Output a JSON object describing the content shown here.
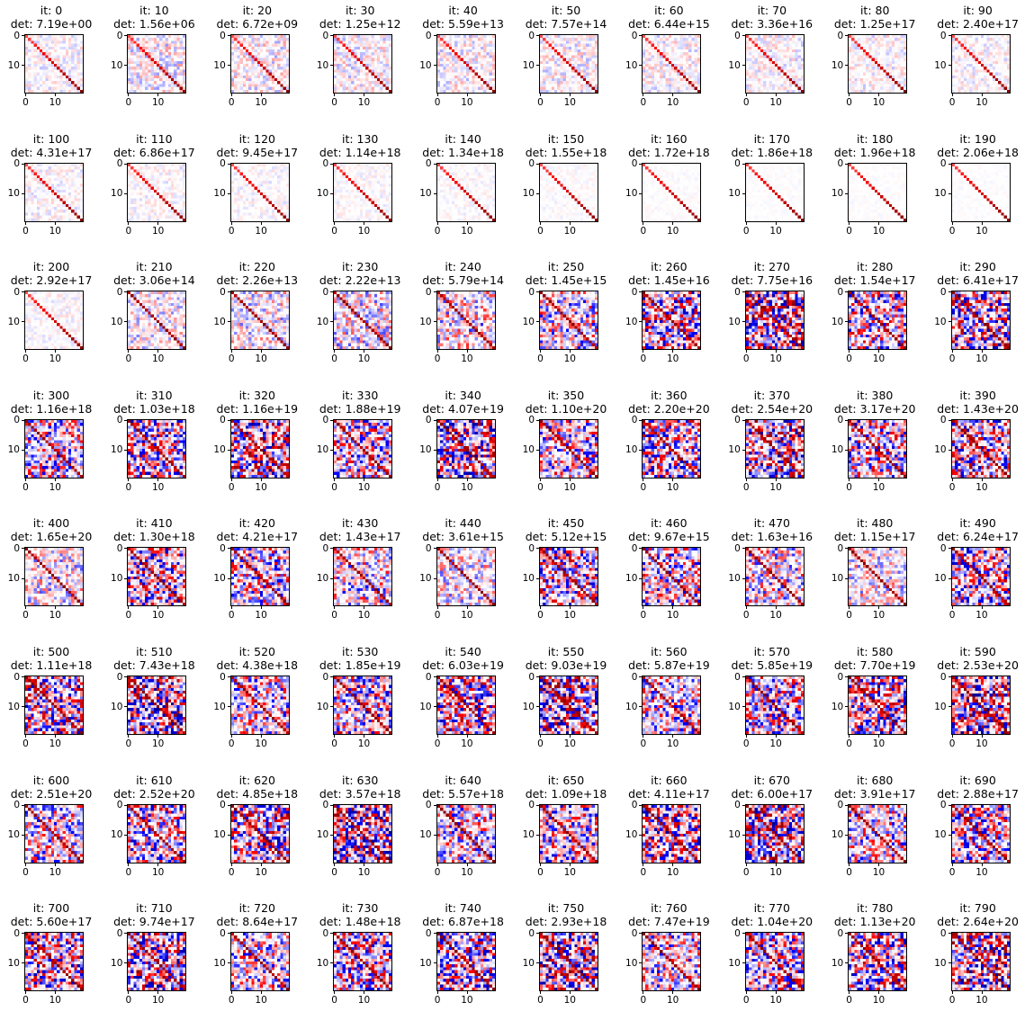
{
  "figure": {
    "grid": {
      "rows": 8,
      "cols": 10
    },
    "title_prefix": "it: ",
    "det_prefix": "det: ",
    "colormap": "seismic",
    "axis_ticks": [
      "0",
      "10"
    ]
  },
  "chart_data": {
    "type": "heatmap",
    "matrix_size": 20,
    "colormap": "seismic",
    "xticks": [
      0,
      10
    ],
    "yticks": [
      0,
      10
    ],
    "panels": [
      {
        "it": "0",
        "det": "7.19e+00"
      },
      {
        "it": "10",
        "det": "1.56e+06"
      },
      {
        "it": "20",
        "det": "6.72e+09"
      },
      {
        "it": "30",
        "det": "1.25e+12"
      },
      {
        "it": "40",
        "det": "5.59e+13"
      },
      {
        "it": "50",
        "det": "7.57e+14"
      },
      {
        "it": "60",
        "det": "6.44e+15"
      },
      {
        "it": "70",
        "det": "3.36e+16"
      },
      {
        "it": "80",
        "det": "1.25e+17"
      },
      {
        "it": "90",
        "det": "2.40e+17"
      },
      {
        "it": "100",
        "det": "4.31e+17"
      },
      {
        "it": "110",
        "det": "6.86e+17"
      },
      {
        "it": "120",
        "det": "9.45e+17"
      },
      {
        "it": "130",
        "det": "1.14e+18"
      },
      {
        "it": "140",
        "det": "1.34e+18"
      },
      {
        "it": "150",
        "det": "1.55e+18"
      },
      {
        "it": "160",
        "det": "1.72e+18"
      },
      {
        "it": "170",
        "det": "1.86e+18"
      },
      {
        "it": "180",
        "det": "1.96e+18"
      },
      {
        "it": "190",
        "det": "2.06e+18"
      },
      {
        "it": "200",
        "det": "2.92e+17"
      },
      {
        "it": "210",
        "det": "3.06e+14"
      },
      {
        "it": "220",
        "det": "2.26e+13"
      },
      {
        "it": "230",
        "det": "2.22e+13"
      },
      {
        "it": "240",
        "det": "5.79e+14"
      },
      {
        "it": "250",
        "det": "1.45e+15"
      },
      {
        "it": "260",
        "det": "1.45e+16"
      },
      {
        "it": "270",
        "det": "7.75e+16"
      },
      {
        "it": "280",
        "det": "1.54e+17"
      },
      {
        "it": "290",
        "det": "6.41e+17"
      },
      {
        "it": "300",
        "det": "1.16e+18"
      },
      {
        "it": "310",
        "det": "1.03e+18"
      },
      {
        "it": "320",
        "det": "1.16e+19"
      },
      {
        "it": "330",
        "det": "1.88e+19"
      },
      {
        "it": "340",
        "det": "4.07e+19"
      },
      {
        "it": "350",
        "det": "1.10e+20"
      },
      {
        "it": "360",
        "det": "2.20e+20"
      },
      {
        "it": "370",
        "det": "2.54e+20"
      },
      {
        "it": "380",
        "det": "3.17e+20"
      },
      {
        "it": "390",
        "det": "1.43e+20"
      },
      {
        "it": "400",
        "det": "1.65e+20"
      },
      {
        "it": "410",
        "det": "1.30e+18"
      },
      {
        "it": "420",
        "det": "4.21e+17"
      },
      {
        "it": "430",
        "det": "1.43e+17"
      },
      {
        "it": "440",
        "det": "3.61e+15"
      },
      {
        "it": "450",
        "det": "5.12e+15"
      },
      {
        "it": "460",
        "det": "9.67e+15"
      },
      {
        "it": "470",
        "det": "1.63e+16"
      },
      {
        "it": "480",
        "det": "1.15e+17"
      },
      {
        "it": "490",
        "det": "6.24e+17"
      },
      {
        "it": "500",
        "det": "1.11e+18"
      },
      {
        "it": "510",
        "det": "7.43e+18"
      },
      {
        "it": "520",
        "det": "4.38e+18"
      },
      {
        "it": "530",
        "det": "1.85e+19"
      },
      {
        "it": "540",
        "det": "6.03e+19"
      },
      {
        "it": "550",
        "det": "9.03e+19"
      },
      {
        "it": "560",
        "det": "5.87e+19"
      },
      {
        "it": "570",
        "det": "5.85e+19"
      },
      {
        "it": "580",
        "det": "7.70e+19"
      },
      {
        "it": "590",
        "det": "2.53e+20"
      },
      {
        "it": "600",
        "det": "2.51e+20"
      },
      {
        "it": "610",
        "det": "2.52e+20"
      },
      {
        "it": "620",
        "det": "4.85e+18"
      },
      {
        "it": "630",
        "det": "3.57e+18"
      },
      {
        "it": "640",
        "det": "5.57e+18"
      },
      {
        "it": "650",
        "det": "1.09e+18"
      },
      {
        "it": "660",
        "det": "4.11e+17"
      },
      {
        "it": "670",
        "det": "6.00e+17"
      },
      {
        "it": "680",
        "det": "3.91e+17"
      },
      {
        "it": "690",
        "det": "2.88e+17"
      },
      {
        "it": "700",
        "det": "5.60e+17"
      },
      {
        "it": "710",
        "det": "9.74e+17"
      },
      {
        "it": "720",
        "det": "8.64e+17"
      },
      {
        "it": "730",
        "det": "1.48e+18"
      },
      {
        "it": "740",
        "det": "6.87e+18"
      },
      {
        "it": "750",
        "det": "2.93e+18"
      },
      {
        "it": "760",
        "det": "7.47e+19"
      },
      {
        "it": "770",
        "det": "1.04e+20"
      },
      {
        "it": "780",
        "det": "1.13e+20"
      },
      {
        "it": "790",
        "det": "2.64e+20"
      }
    ]
  }
}
